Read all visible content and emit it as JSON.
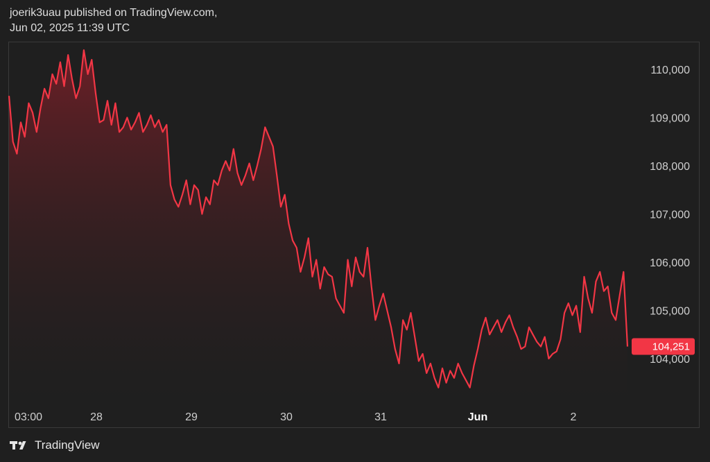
{
  "header": {
    "publisher_line": "joerik3uau published on TradingView.com,",
    "date_line": "Jun 02, 2025 11:39 UTC"
  },
  "footer": {
    "brand_name": "TradingView",
    "logo_icon": "tradingview-logo-icon"
  },
  "colors": {
    "background": "#1f1f1f",
    "line": "#f23645",
    "area_top": "#7a1f28",
    "last_price_bg": "#f23645"
  },
  "chart_data": {
    "type": "area",
    "title": "",
    "xlabel": "",
    "ylabel": "",
    "ylim": [
      103000,
      110800
    ],
    "grid": false,
    "x_tick_labels": [
      {
        "label": "03:00",
        "bold": false
      },
      {
        "label": "28",
        "bold": false
      },
      {
        "label": "29",
        "bold": false
      },
      {
        "label": "30",
        "bold": false
      },
      {
        "label": "31",
        "bold": false
      },
      {
        "label": "Jun",
        "bold": true
      },
      {
        "label": "2",
        "bold": false
      }
    ],
    "y_tick_labels": [
      "110,000",
      "109,000",
      "108,000",
      "107,000",
      "106,000",
      "105,000",
      "104,000"
    ],
    "y_tick_values": [
      110000,
      109000,
      108000,
      107000,
      106000,
      105000,
      104000
    ],
    "last_price": 104251,
    "last_price_label": "104,251",
    "series": [
      {
        "values": [
          109450,
          108500,
          108250,
          108900,
          108600,
          109300,
          109100,
          108700,
          109200,
          109600,
          109400,
          109900,
          109700,
          110150,
          109650,
          110300,
          109800,
          109400,
          109650,
          110400,
          109900,
          110200,
          109500,
          108900,
          108950,
          109350,
          108850,
          109300,
          108700,
          108800,
          109000,
          108750,
          108900,
          109100,
          108700,
          108850,
          109050,
          108800,
          108950,
          108700,
          108850,
          107600,
          107300,
          107150,
          107400,
          107700,
          107200,
          107600,
          107500,
          107000,
          107350,
          107200,
          107700,
          107600,
          107900,
          108100,
          107900,
          108350,
          107850,
          107600,
          107800,
          108050,
          107700,
          108000,
          108350,
          108800,
          108600,
          108400,
          107800,
          107150,
          107400,
          106800,
          106450,
          106300,
          105800,
          106100,
          106500,
          105700,
          106050,
          105450,
          105900,
          105750,
          105700,
          105250,
          105100,
          104950,
          106050,
          105500,
          106100,
          105800,
          105700,
          106300,
          105500,
          104800,
          105100,
          105350,
          105000,
          104650,
          104200,
          103900,
          104800,
          104600,
          104950,
          104450,
          103950,
          104100,
          103700,
          103900,
          103600,
          103400,
          103800,
          103500,
          103750,
          103600,
          103900,
          103700,
          103550,
          103400,
          103850,
          104200,
          104600,
          104850,
          104500,
          104650,
          104800,
          104550,
          104750,
          104900,
          104650,
          104450,
          104200,
          104250,
          104650,
          104500,
          104350,
          104250,
          104450,
          104000,
          104100,
          104150,
          104400,
          104950,
          105150,
          104900,
          105100,
          104550,
          105700,
          105250,
          104950,
          105600,
          105800,
          105400,
          105500,
          104950,
          104800,
          105300,
          105800,
          104251
        ]
      }
    ]
  }
}
